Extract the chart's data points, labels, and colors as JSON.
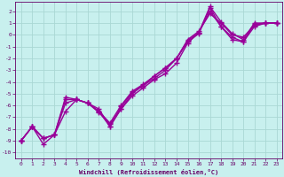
{
  "xlabel": "Windchill (Refroidissement éolien,°C)",
  "ylabel": "",
  "xlim": [
    -0.5,
    23.5
  ],
  "ylim": [
    -10.5,
    2.8
  ],
  "yticks": [
    2,
    1,
    0,
    -1,
    -2,
    -3,
    -4,
    -5,
    -6,
    -7,
    -8,
    -9,
    -10
  ],
  "xticks": [
    0,
    1,
    2,
    3,
    4,
    5,
    6,
    7,
    8,
    9,
    10,
    11,
    12,
    13,
    14,
    15,
    16,
    17,
    18,
    19,
    20,
    21,
    22,
    23
  ],
  "bg_color": "#c8f0ee",
  "grid_color": "#aad8d4",
  "line_color": "#990099",
  "line_width": 1.0,
  "marker": "+",
  "marker_size": 4,
  "marker_edge_width": 1.0,
  "lines": [
    {
      "x": [
        0,
        1,
        2,
        3,
        4,
        5,
        6,
        7,
        8,
        9,
        10,
        11,
        12,
        13,
        14,
        15,
        16,
        17,
        18,
        19,
        20,
        21,
        22,
        23
      ],
      "y": [
        -9.0,
        -7.8,
        -9.3,
        -8.5,
        -5.5,
        -5.5,
        -5.8,
        -6.6,
        -7.6,
        -6.3,
        -5.2,
        -4.5,
        -3.8,
        -3.3,
        -2.4,
        -0.7,
        0.2,
        2.4,
        1.1,
        0.1,
        -0.4,
        1.0,
        1.0,
        1.0
      ]
    },
    {
      "x": [
        0,
        1,
        2,
        3,
        4,
        5,
        6,
        7,
        8,
        9,
        10,
        11,
        12,
        13,
        14,
        15,
        16,
        17,
        18,
        19,
        20,
        21,
        22,
        23
      ],
      "y": [
        -9.0,
        -7.8,
        -8.8,
        -8.5,
        -6.5,
        -5.5,
        -5.8,
        -6.3,
        -7.8,
        -6.1,
        -4.9,
        -4.3,
        -3.7,
        -3.0,
        -2.0,
        -0.5,
        0.2,
        2.0,
        0.7,
        -0.2,
        -0.6,
        0.9,
        1.0,
        1.0
      ]
    },
    {
      "x": [
        0,
        1,
        2,
        3,
        4,
        5,
        6,
        7,
        8,
        9,
        10,
        11,
        12,
        13,
        14,
        15,
        16,
        17,
        18,
        19,
        20,
        21,
        22,
        23
      ],
      "y": [
        -9.0,
        -7.8,
        -8.8,
        -8.5,
        -5.8,
        -5.5,
        -5.8,
        -6.5,
        -7.5,
        -6.0,
        -4.8,
        -4.2,
        -3.5,
        -2.8,
        -2.0,
        -0.6,
        0.1,
        2.3,
        0.7,
        -0.4,
        -0.6,
        0.7,
        1.0,
        1.0
      ]
    },
    {
      "x": [
        0,
        1,
        2,
        3,
        4,
        5,
        6,
        7,
        8,
        9,
        10,
        11,
        12,
        13,
        14,
        15,
        16,
        17,
        18,
        19,
        20,
        21,
        22,
        23
      ],
      "y": [
        -9.0,
        -7.8,
        -8.8,
        -8.5,
        -5.3,
        -5.5,
        -5.8,
        -6.5,
        -7.8,
        -6.3,
        -5.0,
        -4.3,
        -3.5,
        -2.8,
        -2.0,
        -0.4,
        0.3,
        1.8,
        1.0,
        0.0,
        -0.2,
        0.8,
        1.0,
        1.0
      ]
    }
  ]
}
